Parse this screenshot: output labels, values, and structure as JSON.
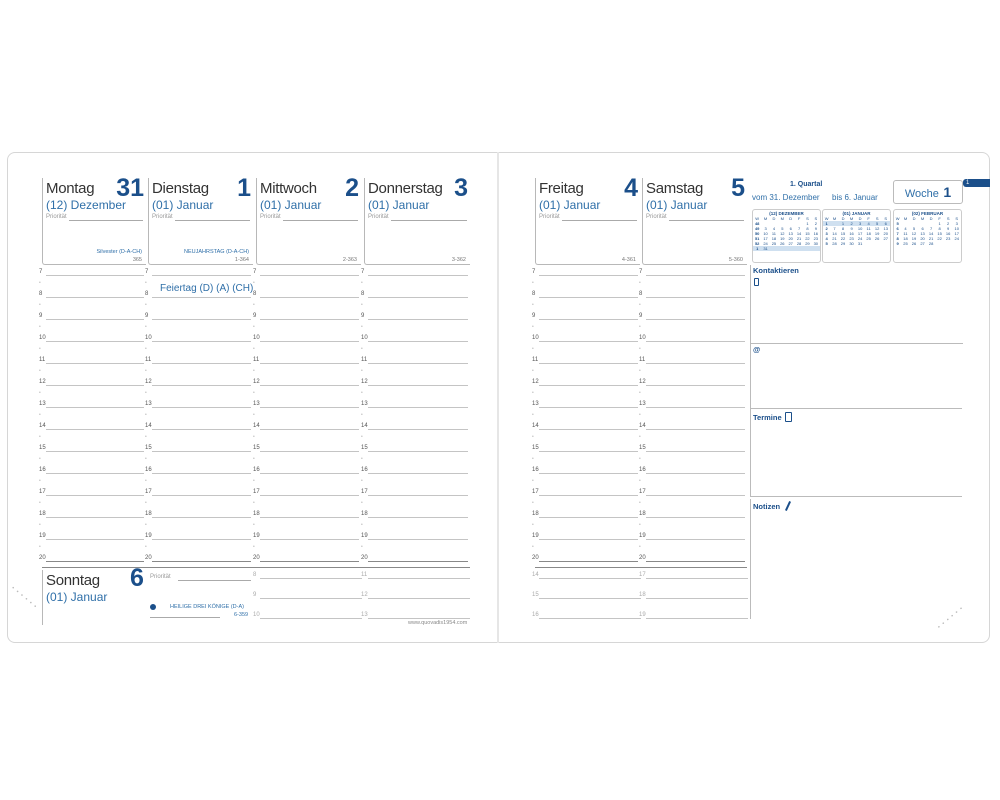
{
  "colors": {
    "accent": "#1b4f8a",
    "text_blue": "#2f6fa8",
    "tab": "#1b4f8a"
  },
  "left_days": [
    {
      "name": "Montag",
      "num": "31",
      "month": "(12) Dezember",
      "prio": "Priorität",
      "holiday": "Silvester (D-A-CH)",
      "dayno": "365"
    },
    {
      "name": "Dienstag",
      "num": "1",
      "month": "(01) Januar",
      "prio": "Priorität",
      "holiday": "NEUJAHRSTAG (D-A-CH)",
      "dayno": "1-364"
    },
    {
      "name": "Mittwoch",
      "num": "2",
      "month": "(01) Januar",
      "prio": "Priorität",
      "holiday": "",
      "dayno": "2-363"
    },
    {
      "name": "Donnerstag",
      "num": "3",
      "month": "(01) Januar",
      "prio": "Priorität",
      "holiday": "",
      "dayno": "3-362"
    }
  ],
  "right_days": [
    {
      "name": "Freitag",
      "num": "4",
      "month": "(01) Januar",
      "prio": "Priorität",
      "holiday": "",
      "dayno": "4-361"
    },
    {
      "name": "Samstag",
      "num": "5",
      "month": "(01) Januar",
      "prio": "Priorität",
      "holiday": "",
      "dayno": "5-360"
    }
  ],
  "hours": [
    "7",
    "8",
    "9",
    "10",
    "11",
    "12",
    "13",
    "14",
    "15",
    "16",
    "17",
    "18",
    "19",
    "20"
  ],
  "feiertag": "Feiertag (D) (A) (CH)",
  "sunday": {
    "name": "Sonntag",
    "num": "6",
    "month": "(01) Januar",
    "prio": "Priorität",
    "holiday": "HEILIGE DREI KÖNIGE (D-A)",
    "dayno": "6-359"
  },
  "extra_hours_left": [
    [
      "8",
      "9",
      "10"
    ],
    [
      "11",
      "12",
      "13"
    ]
  ],
  "extra_hours_right": [
    [
      "14",
      "15",
      "16"
    ],
    [
      "17",
      "18",
      "19"
    ]
  ],
  "website": "www.quovadis1954.com",
  "sidebar": {
    "quarter": "1. Quartal",
    "from": "vom 31. Dezember",
    "to": "bis 6. Januar",
    "week_label": "Woche",
    "week_num": "1",
    "tab": "1",
    "contact": "Kontaktieren",
    "at": "@",
    "termine": "Termine",
    "notizen": "Notizen"
  },
  "mini_calendars": [
    {
      "title": "(12) DEZEMBER",
      "header": [
        "W",
        "M",
        "D",
        "M",
        "D",
        "F",
        "S",
        "S"
      ],
      "rows": [
        [
          "48",
          "",
          "",
          "",
          "",
          "",
          "1",
          "2"
        ],
        [
          "49",
          "3",
          "4",
          "5",
          "6",
          "7",
          "8",
          "9"
        ],
        [
          "50",
          "10",
          "11",
          "12",
          "13",
          "14",
          "15",
          "16"
        ],
        [
          "51",
          "17",
          "18",
          "19",
          "20",
          "21",
          "22",
          "23"
        ],
        [
          "52",
          "24",
          "25",
          "26",
          "27",
          "28",
          "29",
          "30"
        ],
        [
          "1",
          "31",
          "",
          "",
          "",
          "",
          "",
          ""
        ]
      ]
    },
    {
      "title": "(01) JANUAR",
      "header": [
        "W",
        "M",
        "D",
        "M",
        "D",
        "F",
        "S",
        "S"
      ],
      "rows": [
        [
          "1",
          "",
          "1",
          "2",
          "3",
          "4",
          "5",
          "6"
        ],
        [
          "2",
          "7",
          "8",
          "9",
          "10",
          "11",
          "12",
          "13"
        ],
        [
          "3",
          "14",
          "15",
          "16",
          "17",
          "18",
          "19",
          "20"
        ],
        [
          "4",
          "21",
          "22",
          "23",
          "24",
          "25",
          "26",
          "27"
        ],
        [
          "5",
          "28",
          "29",
          "30",
          "31",
          "",
          "",
          ""
        ]
      ]
    },
    {
      "title": "(02) FEBRUAR",
      "header": [
        "W",
        "M",
        "D",
        "M",
        "D",
        "F",
        "S",
        "S"
      ],
      "rows": [
        [
          "5",
          "",
          "",
          "",
          "",
          "1",
          "2",
          "3"
        ],
        [
          "6",
          "4",
          "5",
          "6",
          "7",
          "8",
          "9",
          "10"
        ],
        [
          "7",
          "11",
          "12",
          "13",
          "14",
          "15",
          "16",
          "17"
        ],
        [
          "8",
          "18",
          "19",
          "20",
          "21",
          "22",
          "23",
          "24"
        ],
        [
          "9",
          "25",
          "26",
          "27",
          "28",
          "",
          "",
          ""
        ]
      ]
    }
  ]
}
